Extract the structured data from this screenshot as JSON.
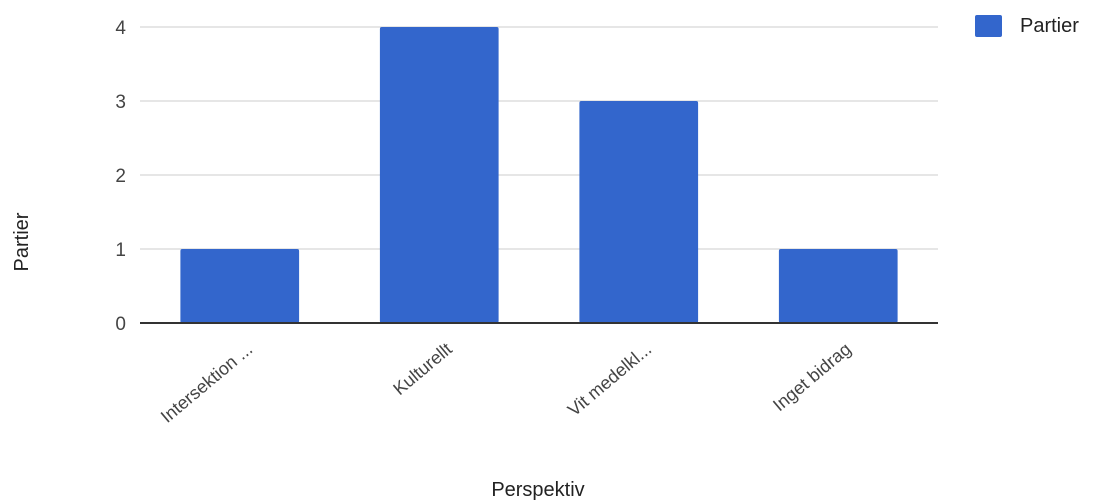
{
  "chart_data": {
    "type": "bar",
    "categories": [
      "Intersektion ...",
      "Kulturellt",
      "Vit medelkl...",
      "Inget bidrag"
    ],
    "series": [
      {
        "name": "Partier",
        "values": [
          1,
          4,
          3,
          1
        ],
        "color": "#3366cc"
      }
    ],
    "xlabel": "Perspektiv",
    "ylabel": "Partier",
    "ylim": [
      0,
      4
    ],
    "yticks": [
      "0",
      "1",
      "2",
      "3",
      "4"
    ],
    "grid": true,
    "legend": "top-right"
  }
}
